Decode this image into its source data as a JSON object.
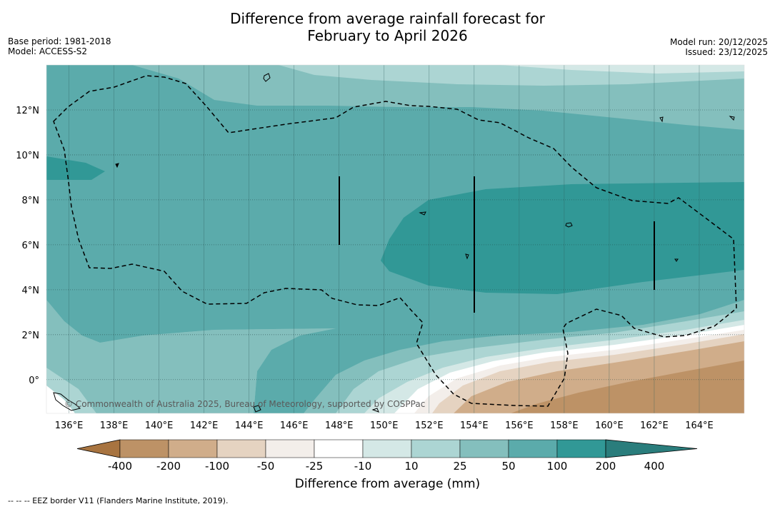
{
  "header": {
    "title_line1": "Difference from average rainfall forecast for",
    "title_line2": "February to April 2026",
    "base_period": "Base period: 1981-2018",
    "model": "Model: ACCESS-S2",
    "model_run": "Model run: 20/12/2025",
    "issued": "Issued: 23/12/2025"
  },
  "map": {
    "lon_range": [
      135,
      166
    ],
    "lat_range": [
      -1.5,
      14
    ],
    "lon_ticks": [
      "136°E",
      "138°E",
      "140°E",
      "142°E",
      "144°E",
      "146°E",
      "148°E",
      "150°E",
      "152°E",
      "154°E",
      "156°E",
      "158°E",
      "160°E",
      "162°E",
      "164°E"
    ],
    "lat_ticks": [
      "12°N",
      "10°N",
      "8°N",
      "6°N",
      "4°N",
      "2°N",
      "0°"
    ],
    "copyright": "© Commonwealth of Australia 2025, Bureau of Meteorology, supported by COSPPac"
  },
  "colorbar": {
    "labels": [
      "-400",
      "-200",
      "-100",
      "-50",
      "-25",
      "-10",
      "10",
      "25",
      "50",
      "100",
      "200",
      "400"
    ],
    "colors": [
      "#a87440",
      "#bd9266",
      "#d0ad8a",
      "#e5d3c1",
      "#f3eeea",
      "#ffffff",
      "#d4e8e6",
      "#acd5d3",
      "#84bfbd",
      "#5babab",
      "#319896",
      "#2a7d7c"
    ],
    "title": "Difference from average (mm)"
  },
  "footnote": "--  --  -- EEZ border V11 (Flanders Marine Institute, 2019)."
}
